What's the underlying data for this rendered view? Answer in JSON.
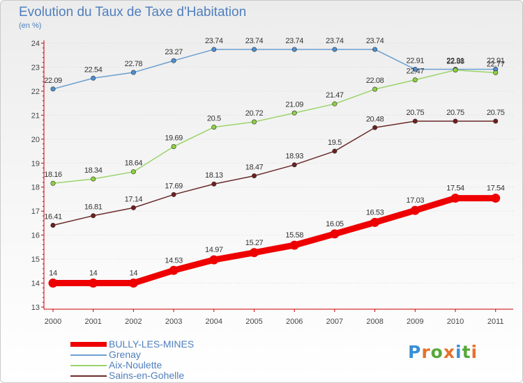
{
  "header": {
    "title": "Evolution du Taux de Taxe d'Habitation",
    "subtitle": "(en %)"
  },
  "logo": {
    "text": "Proxiti",
    "colors": [
      "#3a8fd4",
      "#e8712b",
      "#58a83a",
      "#e8712b",
      "#3a8fd4",
      "#58a83a",
      "#e8712b"
    ]
  },
  "chart_data": {
    "type": "line",
    "x": [
      "2000",
      "2001",
      "2002",
      "2003",
      "2004",
      "2005",
      "2006",
      "2007",
      "2008",
      "2009",
      "2010",
      "2011"
    ],
    "ylim": [
      13,
      24
    ],
    "yticks": [
      "13",
      "14",
      "15",
      "16",
      "17",
      "18",
      "19",
      "20",
      "21",
      "22",
      "23",
      "24"
    ],
    "grid": true,
    "legend_position": "bottom-left",
    "series": [
      {
        "name": "BULLY-LES-MINES",
        "color": "#ee0000",
        "dot": "#ee0000",
        "highlight": true,
        "values": [
          14,
          14,
          14,
          14.53,
          14.97,
          15.27,
          15.58,
          16.05,
          16.53,
          17.03,
          17.54,
          17.54
        ],
        "labels": [
          "14",
          "14",
          "14",
          "14.53",
          "14.97",
          "15.27",
          "15.58",
          "16.05",
          "16.53",
          "17.03",
          "17.54",
          "17.54"
        ]
      },
      {
        "name": "Grenay",
        "color": "#6c9fd0",
        "dot": "#4d8ed0",
        "highlight": false,
        "values": [
          22.09,
          22.54,
          22.78,
          23.27,
          23.74,
          23.74,
          23.74,
          23.74,
          23.74,
          22.91,
          22.91,
          22.91
        ],
        "labels": [
          "22.09",
          "22.54",
          "22.78",
          "23.27",
          "23.74",
          "23.74",
          "23.74",
          "23.74",
          "23.74",
          "22.91",
          "22.91",
          "22.91"
        ]
      },
      {
        "name": "Aix-Noulette",
        "color": "#9ad46a",
        "dot": "#8ed13f",
        "highlight": false,
        "values": [
          18.16,
          18.34,
          18.64,
          19.69,
          20.5,
          20.72,
          21.09,
          21.47,
          22.08,
          22.47,
          22.88,
          22.77
        ],
        "labels": [
          "18.16",
          "18.34",
          "18.64",
          "19.69",
          "20.5",
          "20.72",
          "21.09",
          "21.47",
          "22.08",
          "22.47",
          "22.88",
          "22.77"
        ]
      },
      {
        "name": "Sains-en-Gohelle",
        "color": "#6b2a2a",
        "dot": "#6e1f1f",
        "highlight": false,
        "values": [
          16.41,
          16.81,
          17.14,
          17.69,
          18.13,
          18.47,
          18.93,
          19.5,
          20.48,
          20.75,
          20.75,
          20.75
        ],
        "labels": [
          "16.41",
          "16.81",
          "17.14",
          "17.69",
          "18.13",
          "18.47",
          "18.93",
          "19.5",
          "20.48",
          "20.75",
          "20.75",
          "20.75"
        ]
      }
    ]
  }
}
